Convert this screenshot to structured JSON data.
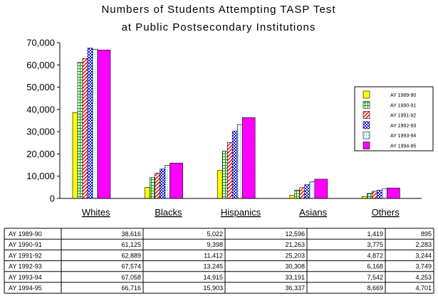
{
  "chart_data": {
    "type": "bar",
    "title_lines": [
      "Numbers of Students Attempting TASP Test",
      "at Public Postsecondary Institutions"
    ],
    "categories": [
      "Whites",
      "Blacks",
      "Hispanics",
      "Asians",
      "Others"
    ],
    "ylim": [
      0,
      70000
    ],
    "y_ticks": [
      "0",
      "10,000",
      "20,000",
      "30,000",
      "40,000",
      "50,000",
      "60,000",
      "70,000"
    ],
    "y_tick_values": [
      0,
      10000,
      20000,
      30000,
      40000,
      50000,
      60000,
      70000
    ],
    "legend_position": "right",
    "grid": false,
    "series": [
      {
        "name": "AY 1989-90",
        "color": "#ffff00",
        "pattern": "solid",
        "values": [
          38616,
          5022,
          12596,
          1419,
          895
        ],
        "labels": [
          "38,616",
          "5,022",
          "12,596",
          "1,419",
          "895"
        ]
      },
      {
        "name": "AY 1990-91",
        "color": "#00c000",
        "pattern": "grid",
        "values": [
          61125,
          9398,
          21263,
          3775,
          2283
        ],
        "labels": [
          "61,125",
          "9,398",
          "21,263",
          "3,775",
          "2,283"
        ]
      },
      {
        "name": "AY 1991-92",
        "color": "#ff0000",
        "pattern": "diagonal",
        "values": [
          62889,
          11412,
          25203,
          4872,
          3244
        ],
        "labels": [
          "62,889",
          "11,412",
          "25,203",
          "4,872",
          "3,244"
        ]
      },
      {
        "name": "AY 1992-93",
        "color": "#0000ff",
        "pattern": "checker",
        "values": [
          67574,
          13245,
          30308,
          6168,
          3749
        ],
        "labels": [
          "67,574",
          "13,245",
          "30,308",
          "6,168",
          "3,749"
        ]
      },
      {
        "name": "AY 1993-94",
        "color": "#00c0c0",
        "pattern": "dots",
        "values": [
          67058,
          14915,
          33191,
          7542,
          4253
        ],
        "labels": [
          "67,058",
          "14,915",
          "33,191",
          "7,542",
          "4,253"
        ]
      },
      {
        "name": "AY 1994-95",
        "color": "#ff00ff",
        "pattern": "solid",
        "values": [
          66716,
          15903,
          36337,
          8669,
          4701
        ],
        "labels": [
          "66,716",
          "15,903",
          "36,337",
          "8,669",
          "4,701"
        ]
      }
    ]
  }
}
